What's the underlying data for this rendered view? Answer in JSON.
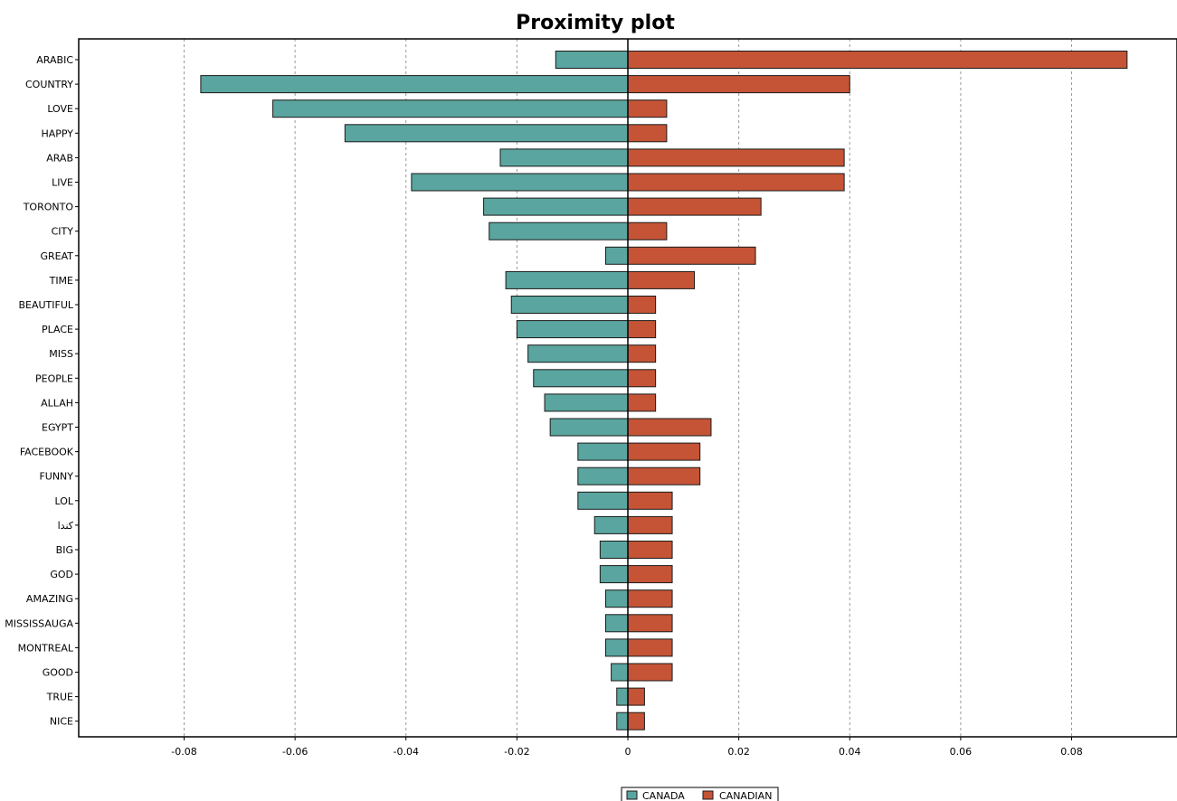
{
  "chart_data": {
    "type": "bar",
    "orientation": "horizontal",
    "title": "Proximity plot",
    "xlabel": "",
    "ylabel": "",
    "xlim": [
      -0.099,
      0.099
    ],
    "x_ticks": [
      -0.08,
      -0.06,
      -0.04,
      -0.02,
      0,
      0.02,
      0.04,
      0.06,
      0.08
    ],
    "x_tick_labels": [
      "-0.08",
      "-0.06",
      "-0.04",
      "-0.02",
      "0",
      "0.02",
      "0.04",
      "0.06",
      "0.08"
    ],
    "grid": "vertical-dashed",
    "legend_position": "bottom-center",
    "categories": [
      "ARABIC",
      "COUNTRY",
      "LOVE",
      "HAPPY",
      "ARAB",
      "LIVE",
      "TORONTO",
      "CITY",
      "GREAT",
      "TIME",
      "BEAUTIFUL",
      "PLACE",
      "MISS",
      "PEOPLE",
      "ALLAH",
      "EGYPT",
      "FACEBOOK",
      "FUNNY",
      "LOL",
      "كندا",
      "BIG",
      "GOD",
      "AMAZING",
      "MISSISSAUGA",
      "MONTREAL",
      "GOOD",
      "TRUE",
      "NICE"
    ],
    "series": [
      {
        "name": "CANADA",
        "color": "#5aa59f",
        "values": [
          -0.013,
          -0.077,
          -0.064,
          -0.051,
          -0.023,
          -0.039,
          -0.026,
          -0.025,
          -0.004,
          -0.022,
          -0.021,
          -0.02,
          -0.018,
          -0.017,
          -0.015,
          -0.014,
          -0.009,
          -0.009,
          -0.009,
          -0.006,
          -0.005,
          -0.005,
          -0.004,
          -0.004,
          -0.004,
          -0.003,
          -0.002,
          -0.002
        ]
      },
      {
        "name": "CANADIAN",
        "color": "#c55436",
        "values": [
          0.09,
          0.04,
          0.007,
          0.007,
          0.039,
          0.039,
          0.024,
          0.007,
          0.023,
          0.012,
          0.005,
          0.005,
          0.005,
          0.005,
          0.005,
          0.015,
          0.013,
          0.013,
          0.008,
          0.008,
          0.008,
          0.008,
          0.008,
          0.008,
          0.008,
          0.008,
          0.003,
          0.003
        ]
      }
    ]
  }
}
